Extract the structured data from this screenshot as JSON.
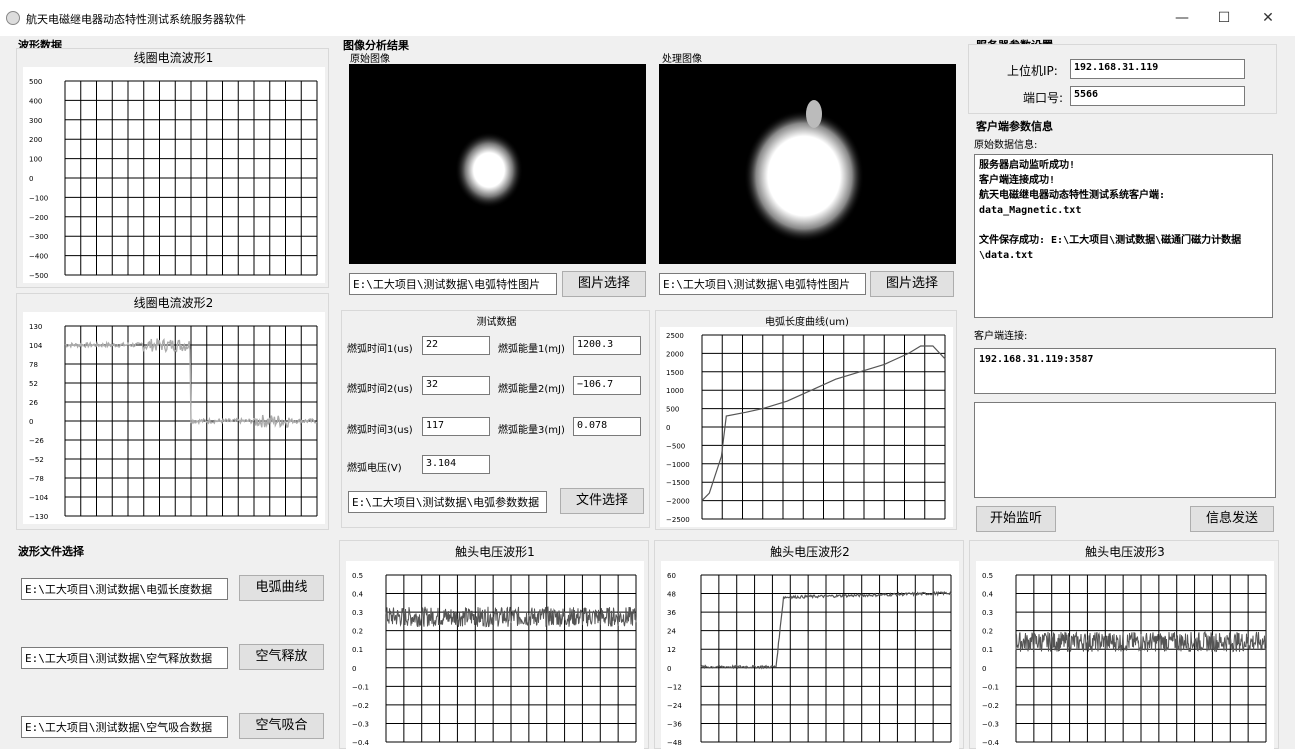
{
  "window": {
    "title": "航天电磁继电器动态特性测试系统服务器软件",
    "min": "—",
    "max": "☐",
    "close": "✕"
  },
  "waveform": {
    "group_title": "波形数据",
    "coil1": {
      "title": "线圈电流波形1",
      "yticks": [
        "500",
        "400",
        "300",
        "200",
        "100",
        "0",
        "−100",
        "−200",
        "−300",
        "−400",
        "−500"
      ]
    },
    "coil2": {
      "title": "线圈电流波形2",
      "yticks": [
        "130",
        "104",
        "78",
        "52",
        "26",
        "0",
        "−26",
        "−52",
        "−78",
        "−104",
        "−130"
      ]
    }
  },
  "image_analysis": {
    "group_title": "图像分析结果",
    "original_label": "原始图像",
    "processed_label": "处理图像",
    "original_path": "E:\\工大项目\\测试数据\\电弧特性图片",
    "processed_path": "E:\\工大项目\\测试数据\\电弧特性图片",
    "select_button": "图片选择"
  },
  "test_data": {
    "title": "测试数据",
    "rows": [
      {
        "time_label": "燃弧时间1(us)",
        "time_value": "22",
        "energy_label": "燃弧能量1(mJ)",
        "energy_value": "1200.3"
      },
      {
        "time_label": "燃弧时间2(us)",
        "time_value": "32",
        "energy_label": "燃弧能量2(mJ)",
        "energy_value": "−106.7"
      },
      {
        "time_label": "燃弧时间3(us)",
        "time_value": "117",
        "energy_label": "燃弧能量3(mJ)",
        "energy_value": "0.078"
      }
    ],
    "voltage_label": "燃弧电压(V)",
    "voltage_value": "3.104",
    "file_path": "E:\\工大项目\\测试数据\\电弧参数数据",
    "file_button": "文件选择"
  },
  "arc_length": {
    "title": "电弧长度曲线(um)",
    "yticks": [
      "2500",
      "2000",
      "1500",
      "1000",
      "500",
      "0",
      "−500",
      "−1000",
      "−1500",
      "−2000",
      "−2500"
    ]
  },
  "server": {
    "group_title": "服务器参数设置",
    "ip_label": "上位机IP:",
    "ip_value": "192.168.31.119",
    "port_label": "端口号:",
    "port_value": "5566"
  },
  "client": {
    "group_title": "客户端参数信息",
    "raw_label": "原始数据信息:",
    "raw_text": "服务器启动监听成功!\n客户端连接成功!\n航天电磁继电器动态特性测试系统客户端:\ndata_Magnetic.txt\n\n文件保存成功: E:\\工大项目\\测试数据\\磁通门磁力计数据\\data.txt",
    "conn_label": "客户端连接:",
    "conn_value": "192.168.31.119:3587",
    "listen_button": "开始监听",
    "send_button": "信息发送"
  },
  "file_select": {
    "group_title": "波形文件选择",
    "rows": [
      {
        "path": "E:\\工大项目\\测试数据\\电弧长度数据",
        "button": "电弧曲线"
      },
      {
        "path": "E:\\工大项目\\测试数据\\空气释放数据",
        "button": "空气释放"
      },
      {
        "path": "E:\\工大项目\\测试数据\\空气吸合数据",
        "button": "空气吸合"
      }
    ]
  },
  "contact": {
    "v1": {
      "title": "触头电压波形1",
      "yticks": [
        "0.5",
        "0.4",
        "0.3",
        "0.2",
        "0.1",
        "0",
        "−0.1",
        "−0.2",
        "−0.3",
        "−0.4"
      ]
    },
    "v2": {
      "title": "触头电压波形2",
      "yticks": [
        "60",
        "48",
        "36",
        "24",
        "12",
        "0",
        "−12",
        "−24",
        "−36",
        "−48"
      ]
    },
    "v3": {
      "title": "触头电压波形3",
      "yticks": [
        "0.5",
        "0.4",
        "0.3",
        "0.2",
        "0.1",
        "0",
        "−0.1",
        "−0.2",
        "−0.3",
        "−0.4"
      ]
    }
  },
  "chart_data": [
    {
      "type": "line",
      "title": "线圈电流波形1",
      "y": [],
      "ylim": [
        -500,
        500
      ]
    },
    {
      "type": "line",
      "title": "线圈电流波形2",
      "x": [
        0,
        0.2,
        0.45,
        0.5,
        0.55,
        0.6,
        1.0
      ],
      "y": [
        104,
        104,
        104,
        104,
        0,
        0,
        0
      ],
      "ylim": [
        -130,
        130
      ]
    },
    {
      "type": "line",
      "title": "电弧长度曲线(um)",
      "x": [
        0,
        0.03,
        0.08,
        0.1,
        0.18,
        0.25,
        0.35,
        0.45,
        0.55,
        0.65,
        0.75,
        0.85,
        0.9,
        0.95,
        1.0
      ],
      "y": [
        -2000,
        -1800,
        -800,
        300,
        400,
        500,
        700,
        1000,
        1300,
        1500,
        1700,
        2000,
        2200,
        2200,
        1850
      ],
      "ylim": [
        -2500,
        2500
      ]
    },
    {
      "type": "line",
      "title": "触头电压波形1",
      "y_level": 0.3,
      "ylim": [
        -0.4,
        0.5
      ]
    },
    {
      "type": "line",
      "title": "触头电压波形2",
      "x": [
        0,
        0.3,
        0.33,
        1.0
      ],
      "y": [
        0,
        0,
        50,
        53
      ],
      "ylim": [
        -48,
        60
      ]
    },
    {
      "type": "line",
      "title": "触头电压波形3",
      "y_level": 0.15,
      "ylim": [
        -0.4,
        0.5
      ]
    }
  ]
}
